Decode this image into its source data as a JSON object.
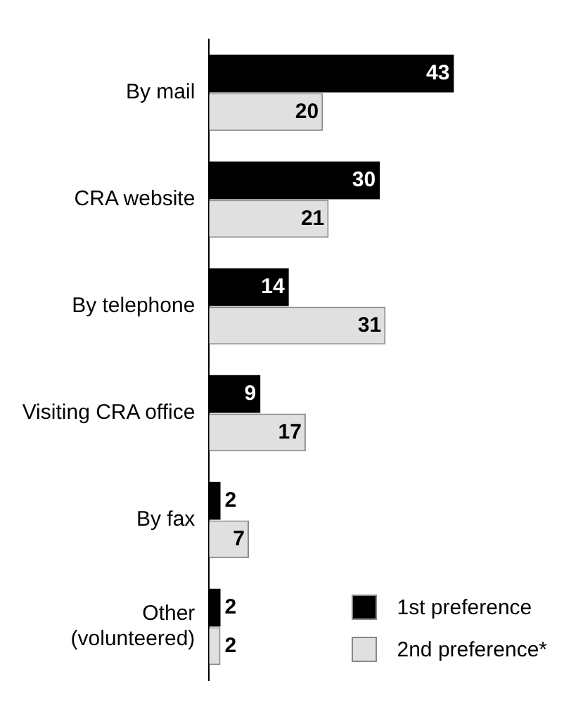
{
  "chart_data": {
    "type": "bar",
    "orientation": "horizontal",
    "categories": [
      "By mail",
      "CRA website",
      "By telephone",
      "Visiting CRA office",
      "By fax",
      "Other\n(volunteered)"
    ],
    "series": [
      {
        "name": "1st preference",
        "color": "#000000",
        "values": [
          43,
          30,
          14,
          9,
          2,
          2
        ]
      },
      {
        "name": "2nd preference*",
        "color": "#e0e0e0",
        "values": [
          20,
          21,
          31,
          17,
          7,
          2
        ]
      }
    ],
    "data_labels": true,
    "legend": "bottom right"
  }
}
